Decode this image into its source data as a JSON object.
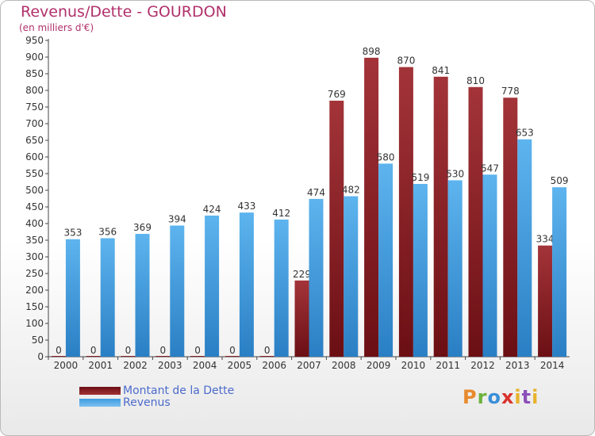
{
  "title": "Revenus/Dette - GOURDON",
  "subtitle": "(en milliers d'€)",
  "logo": {
    "text": "Proxiti"
  },
  "colors": {
    "dette": "#6b0f14",
    "revenus": "#3d9ce0",
    "title": "#b0306a",
    "legend_text": "#4c6bcc"
  },
  "chart_data": {
    "type": "bar",
    "title": "Revenus/Dette - GOURDON",
    "ylabel": "(en milliers d'€)",
    "ylim": [
      0,
      950
    ],
    "yticks": [
      0,
      50,
      100,
      150,
      200,
      250,
      300,
      350,
      400,
      450,
      500,
      550,
      600,
      650,
      700,
      750,
      800,
      850,
      900,
      950
    ],
    "categories": [
      "2000",
      "2001",
      "2002",
      "2003",
      "2004",
      "2005",
      "2006",
      "2007",
      "2008",
      "2009",
      "2010",
      "2011",
      "2012",
      "2013",
      "2014"
    ],
    "series": [
      {
        "name": "Montant de la Dette",
        "values": [
          0,
          0,
          0,
          0,
          0,
          0,
          0,
          229,
          769,
          898,
          870,
          841,
          810,
          778,
          334
        ]
      },
      {
        "name": "Revenus",
        "values": [
          353,
          356,
          369,
          394,
          424,
          433,
          412,
          474,
          482,
          580,
          519,
          530,
          547,
          653,
          509
        ]
      }
    ],
    "legend": "bottom-left",
    "grid": false
  }
}
